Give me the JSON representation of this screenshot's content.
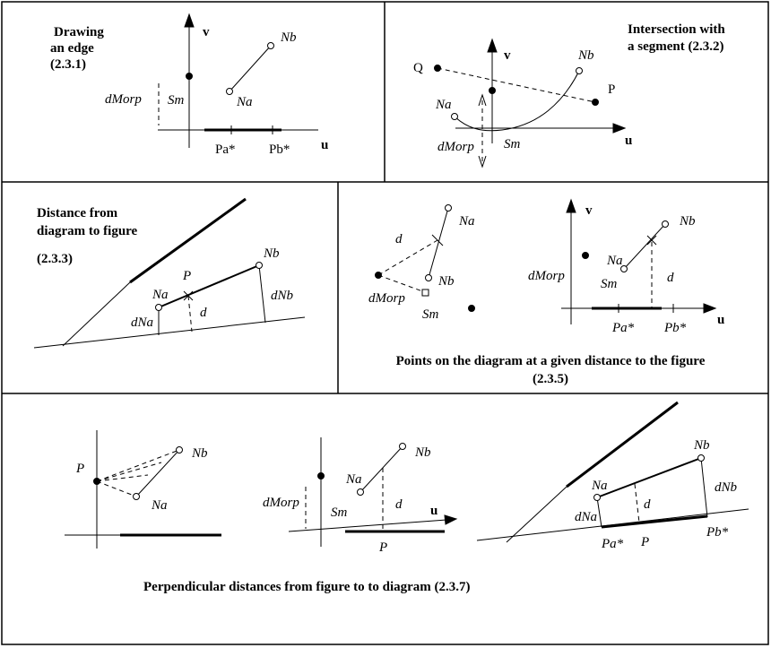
{
  "panels": {
    "drawing_edge": {
      "title": [
        "Drawing",
        "an edge",
        "(2.3.1)"
      ],
      "labels": {
        "v": "v",
        "u": "u",
        "nb": "Nb",
        "na": "Na",
        "sm": "Sm",
        "dmorp": "dMorp",
        "pa": "Pa*",
        "pb": "Pb*"
      }
    },
    "intersection": {
      "title": [
        "Intersection  with",
        "a segment (2.3.2)"
      ],
      "labels": {
        "q": "Q",
        "v": "v",
        "nb": "Nb",
        "p": "P",
        "na": "Na",
        "dmorp": "dMorp",
        "sm": "Sm",
        "u": "u"
      }
    },
    "distance": {
      "title": [
        "Distance        from",
        "diagram to figure",
        "(2.3.3)"
      ],
      "labels": {
        "nb": "Nb",
        "p": "P",
        "na": "Na",
        "dnb": "dNb",
        "dna": "dNa",
        "d": "d"
      }
    },
    "points": {
      "caption": [
        "Points on the diagram at a given distance to the figure",
        "(2.3.5)"
      ],
      "left": {
        "na": "Na",
        "d": "d",
        "nb": "Nb",
        "dmorp": "dMorp",
        "sm": "Sm"
      },
      "right": {
        "v": "v",
        "nb": "Nb",
        "na": "Na",
        "dmorp": "dMorp",
        "sm": "Sm",
        "d": "d",
        "u": "u",
        "pa": "Pa*",
        "pb": "Pb*"
      }
    },
    "perpendicular": {
      "caption": "Perpendicular distances from figure to to diagram (2.3.7)",
      "left": {
        "p": "P",
        "nb": "Nb",
        "na": "Na"
      },
      "middle": {
        "nb": "Nb",
        "na": "Na",
        "dmorp": "dMorp",
        "sm": "Sm",
        "d": "d",
        "u": "u",
        "p": "P"
      },
      "right": {
        "nb": "Nb",
        "na": "Na",
        "dnb": "dNb",
        "dna": "dNa",
        "d": "d",
        "pa": "Pa*",
        "p": "P",
        "pb": "Pb*"
      }
    }
  }
}
